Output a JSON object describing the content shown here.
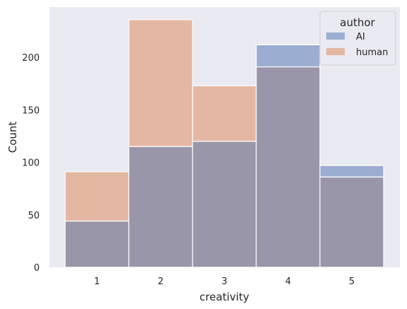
{
  "chart_data": {
    "type": "bar",
    "xlabel": "creativity",
    "ylabel": "Count",
    "categories": [
      "1",
      "2",
      "3",
      "4",
      "5"
    ],
    "series": [
      {
        "name": "AI",
        "values": [
          44,
          115,
          120,
          212,
          97
        ],
        "color": "#4c72b0"
      },
      {
        "name": "human",
        "values": [
          91,
          236,
          173,
          191,
          86
        ],
        "color": "#dd8452"
      }
    ],
    "yticks": [
      0,
      50,
      100,
      150,
      200
    ],
    "ylim": [
      0,
      248
    ],
    "grid": false,
    "legend": {
      "title": "author",
      "placement": "top-right"
    },
    "background": "#eaeaf2",
    "overlap_color": "#9a96aa"
  }
}
